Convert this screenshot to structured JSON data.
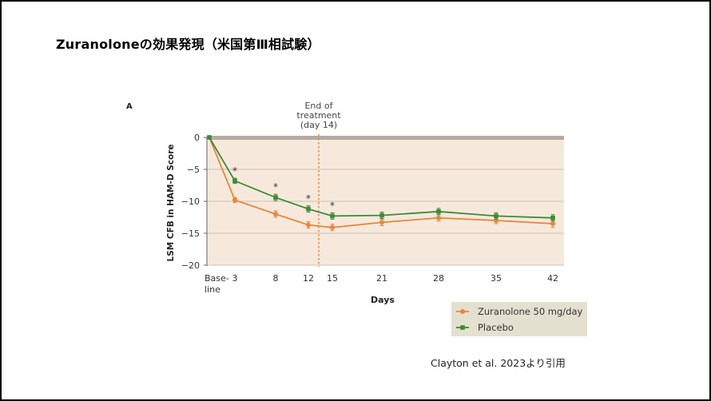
{
  "slide": {
    "title": "Zuranoloneの効果発現（米国第Ⅲ相試験）",
    "citation": "Clayton et al.  2023より引用"
  },
  "chart_data": {
    "type": "line",
    "panel_label": "A",
    "xlabel": "Days",
    "ylabel": "LSM CFB in HAM-D Score",
    "ylim": [
      -20,
      0
    ],
    "yticks": [
      0,
      -5,
      -10,
      -15,
      -20
    ],
    "x": [
      0,
      3,
      8,
      12,
      15,
      21,
      28,
      35,
      42
    ],
    "xtick_labels": [
      "Base-\nline",
      "3",
      "8",
      "12",
      "15",
      "21",
      "28",
      "35",
      "42"
    ],
    "annotation": {
      "text_lines": [
        "End of",
        "treatment",
        "(day 14)"
      ],
      "x": 14
    },
    "significance_marker": "*",
    "significant_days": [
      3,
      8,
      12,
      15
    ],
    "series": [
      {
        "name": "Zuranolone 50 mg/day",
        "color": "#e8873a",
        "marker": "circle",
        "values": [
          0,
          -9.8,
          -12.0,
          -13.7,
          -14.1,
          -13.3,
          -12.6,
          -13.0,
          -13.5
        ],
        "errors": [
          0,
          0.4,
          0.5,
          0.5,
          0.5,
          0.5,
          0.5,
          0.5,
          0.6
        ]
      },
      {
        "name": "Placebo",
        "color": "#3d8b37",
        "marker": "square",
        "values": [
          0,
          -6.8,
          -9.4,
          -11.2,
          -12.3,
          -12.2,
          -11.6,
          -12.3,
          -12.6
        ],
        "errors": [
          0,
          0.4,
          0.5,
          0.5,
          0.5,
          0.5,
          0.5,
          0.5,
          0.5
        ]
      }
    ],
    "colors": {
      "plot_background": "#f6e9dc",
      "legend_background": "#e4e0cf",
      "baseline_band": "#b3aaa2",
      "gridline": "#bdb3a8",
      "end_line": "#e8873a"
    }
  }
}
